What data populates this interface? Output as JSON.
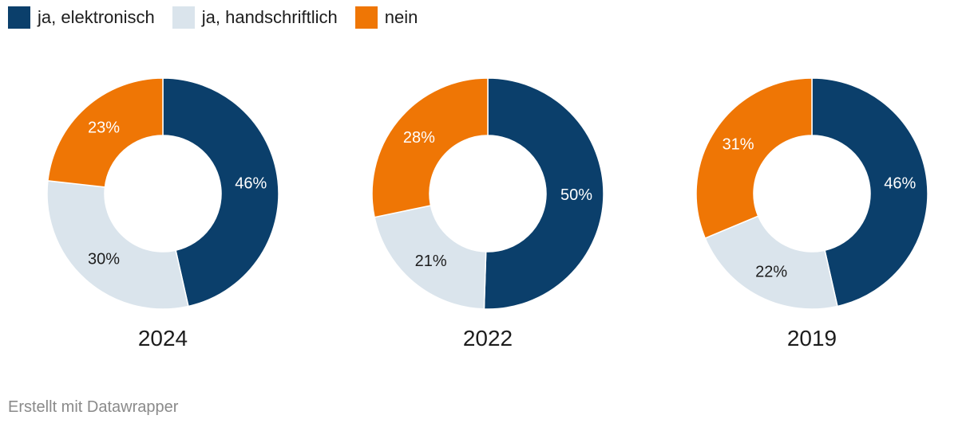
{
  "legend": [
    {
      "label": "ja, elektronisch",
      "color": "#0b3f6b"
    },
    {
      "label": "ja, handschriftlich",
      "color": "#dae4ec"
    },
    {
      "label": "nein",
      "color": "#ef7605"
    }
  ],
  "footer": "Erstellt mit Datawrapper",
  "chart_data": {
    "type": "pie",
    "donut": true,
    "series_names": [
      "ja, elektronisch",
      "ja, handschriftlich",
      "nein"
    ],
    "charts": [
      {
        "title": "2024",
        "values": [
          46,
          30,
          23
        ],
        "labels": [
          "46%",
          "30%",
          "23%"
        ]
      },
      {
        "title": "2022",
        "values": [
          50,
          21,
          28
        ],
        "labels": [
          "50%",
          "21%",
          "28%"
        ]
      },
      {
        "title": "2019",
        "values": [
          46,
          22,
          31
        ],
        "labels": [
          "46%",
          "22%",
          "31%"
        ]
      }
    ],
    "colors": [
      "#0b3f6b",
      "#dae4ec",
      "#ef7605"
    ],
    "label_colors": [
      "#ffffff",
      "#1d1d1d",
      "#ffffff"
    ],
    "legend_position": "top-left"
  }
}
